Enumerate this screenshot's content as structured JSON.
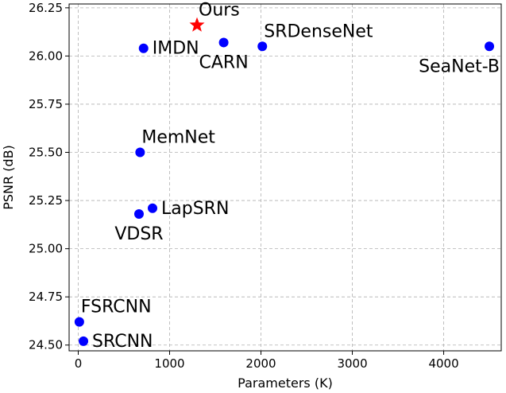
{
  "chart_data": {
    "type": "scatter",
    "title": "",
    "xlabel": "Parameters (K)",
    "ylabel": "PSNR (dB)",
    "xlim": [
      -100,
      4630
    ],
    "ylim": [
      24.47,
      26.27
    ],
    "xticks": [
      0,
      1000,
      2000,
      3000,
      4000
    ],
    "yticks": [
      24.5,
      24.75,
      25.0,
      25.25,
      25.5,
      25.75,
      26.0,
      26.25
    ],
    "xtick_labels": [
      "0",
      "1000",
      "2000",
      "3000",
      "4000"
    ],
    "ytick_labels": [
      "24.50",
      "24.75",
      "25.00",
      "25.25",
      "25.50",
      "25.75",
      "26.00",
      "26.25"
    ],
    "grid": true,
    "points": [
      {
        "label": "SRCNN",
        "x": 57,
        "y": 24.52,
        "marker": "circle",
        "color": "#0000ff",
        "label_pos": "right"
      },
      {
        "label": "FSRCNN",
        "x": 12,
        "y": 24.62,
        "marker": "circle",
        "color": "#0000ff",
        "label_pos": "above-right"
      },
      {
        "label": "VDSR",
        "x": 665,
        "y": 25.18,
        "marker": "circle",
        "color": "#0000ff",
        "label_pos": "below"
      },
      {
        "label": "LapSRN",
        "x": 813,
        "y": 25.21,
        "marker": "circle",
        "color": "#0000ff",
        "label_pos": "right"
      },
      {
        "label": "MemNet",
        "x": 677,
        "y": 25.5,
        "marker": "circle",
        "color": "#0000ff",
        "label_pos": "above-right"
      },
      {
        "label": "IMDN",
        "x": 715,
        "y": 26.04,
        "marker": "circle",
        "color": "#0000ff",
        "label_pos": "right"
      },
      {
        "label": "CARN",
        "x": 1592,
        "y": 26.07,
        "marker": "circle",
        "color": "#0000ff",
        "label_pos": "below"
      },
      {
        "label": "SRDenseNet",
        "x": 2015,
        "y": 26.05,
        "marker": "circle",
        "color": "#0000ff",
        "label_pos": "above-right"
      },
      {
        "label": "SeaNet-B",
        "x": 4500,
        "y": 26.05,
        "marker": "circle",
        "color": "#0000ff",
        "label_pos": "below"
      },
      {
        "label": "Ours",
        "x": 1300,
        "y": 26.16,
        "marker": "star",
        "color": "#ff0000",
        "label_pos": "above-right"
      }
    ]
  }
}
